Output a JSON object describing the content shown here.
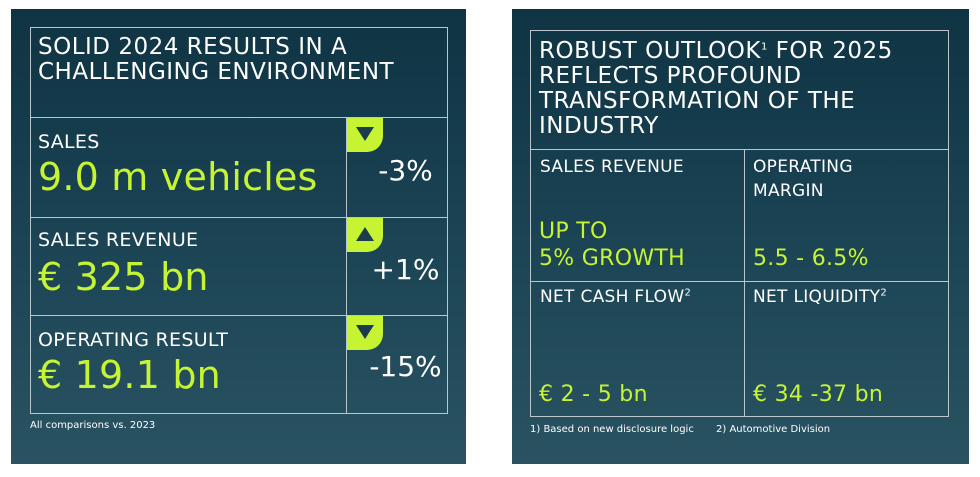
{
  "left": {
    "title_line1": "SOLID 2024 RESULTS IN A",
    "title_line2": "CHALLENGING ENVIRONMENT",
    "rows": [
      {
        "label": "SALES",
        "value": "9.0 m vehicles",
        "change": "-3%",
        "direction": "down"
      },
      {
        "label": "SALES REVENUE",
        "value": "€ 325 bn",
        "change": "+1%",
        "direction": "up"
      },
      {
        "label": "OPERATING RESULT",
        "value": "€ 19.1 bn",
        "change": "-15%",
        "direction": "down"
      }
    ],
    "footnote": "All comparisons vs. 2023"
  },
  "right": {
    "title_line1": "ROBUST OUTLOOK",
    "title_sup": "1",
    "title_line1_rest": " FOR 2025",
    "title_line2": "REFLECTS PROFOUND",
    "title_line3": "TRANSFORMATION OF THE",
    "title_line4": "INDUSTRY",
    "cells": {
      "sales_revenue_label": "SALES REVENUE",
      "sales_revenue_value1": "UP TO",
      "sales_revenue_value2": "5% GROWTH",
      "operating_margin_label1": "OPERATING",
      "operating_margin_label2": "MARGIN",
      "operating_margin_value": "5.5 - 6.5%",
      "net_cash_flow_label": "NET CASH FLOW",
      "net_cash_flow_sup": "2",
      "net_cash_flow_value": "€ 2 - 5 bn",
      "net_liquidity_label": "NET LIQUIDITY",
      "net_liquidity_sup": "2",
      "net_liquidity_value": "€ 34 -37 bn"
    },
    "footnote1": "1)  Based on new disclosure logic",
    "footnote2": "2) Automotive Division"
  },
  "colors": {
    "accent": "#c6f432",
    "panel": "#1c4555",
    "line": "#b9c7cd"
  },
  "icons": {
    "down": "triangle-down-icon",
    "up": "triangle-up-icon"
  }
}
